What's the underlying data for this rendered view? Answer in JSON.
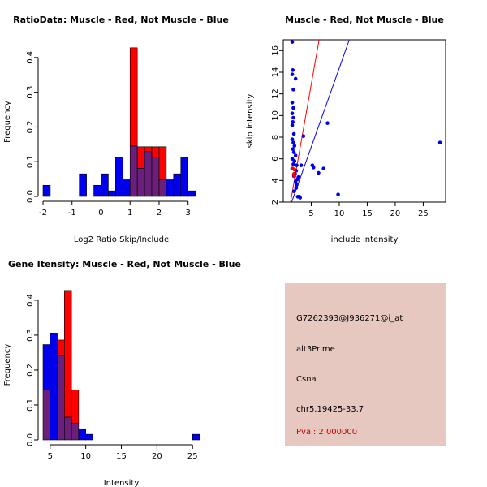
{
  "colors": {
    "red": "#ff0000",
    "blue": "#0000ee",
    "overlap": "#6a1f7a",
    "info_bg": "#e6c8c0",
    "pval": "#c00000"
  },
  "chart_data": [
    {
      "id": "ratio",
      "type": "bar",
      "title": "RatioData: Muscle - Red, Not Muscle - Blue",
      "xlabel": "Log2 Ratio Skip/Include",
      "ylabel": "Frequency",
      "xlim": [
        -2,
        3.4
      ],
      "ylim": [
        0,
        0.43
      ],
      "xticks": [
        -2,
        -1,
        0,
        1,
        2,
        3
      ],
      "yticks": [
        0.0,
        0.1,
        0.2,
        0.3,
        0.4
      ],
      "ytick_labels": [
        "0.0",
        "0.1",
        "0.2",
        "0.3",
        "0.4"
      ],
      "bin_edges": [
        -2.0,
        -1.75,
        -1.5,
        -1.25,
        -1.0,
        -0.75,
        -0.5,
        -0.25,
        0.0,
        0.25,
        0.5,
        0.75,
        1.0,
        1.25,
        1.5,
        1.75,
        2.0,
        2.25,
        2.5,
        2.75,
        3.0,
        3.25
      ],
      "series": [
        {
          "name": "Muscle",
          "color": "red",
          "values": [
            0,
            0,
            0,
            0,
            0,
            0,
            0,
            0,
            0,
            0,
            0,
            0,
            0.428,
            0.143,
            0.143,
            0.143,
            0.143,
            0,
            0,
            0,
            0
          ]
        },
        {
          "name": "Not Muscle",
          "color": "blue",
          "values": [
            0.032,
            0,
            0,
            0,
            0,
            0.065,
            0,
            0.032,
            0.065,
            0.016,
            0.113,
            0.048,
            0.145,
            0.081,
            0.129,
            0.113,
            0.048,
            0.048,
            0.065,
            0.113,
            0.016
          ]
        }
      ]
    },
    {
      "id": "scatter",
      "type": "scatter",
      "title": "Muscle - Red, Not Muscle - Blue",
      "xlabel": "include intensity",
      "ylabel": "skip intensity",
      "xlim": [
        0,
        29
      ],
      "ylim": [
        2,
        17
      ],
      "xticks": [
        5,
        10,
        15,
        20,
        25
      ],
      "yticks": [
        2,
        4,
        6,
        8,
        10,
        12,
        14,
        16
      ],
      "lines": [
        {
          "name": "red-fit",
          "color": "red",
          "x": [
            1.3,
            6.4
          ],
          "y": [
            2,
            17
          ]
        },
        {
          "name": "blue-fit",
          "color": "blue",
          "x": [
            1.5,
            11.8
          ],
          "y": [
            2,
            17
          ]
        }
      ],
      "series": [
        {
          "name": "Not Muscle",
          "color": "blue",
          "points": [
            [
              1.6,
              16.8
            ],
            [
              1.7,
              14.2
            ],
            [
              1.6,
              13.8
            ],
            [
              2.2,
              13.4
            ],
            [
              1.8,
              12.4
            ],
            [
              1.6,
              11.2
            ],
            [
              1.8,
              10.7
            ],
            [
              1.6,
              10.2
            ],
            [
              1.8,
              9.8
            ],
            [
              1.7,
              9.4
            ],
            [
              1.6,
              9.1
            ],
            [
              1.9,
              8.3
            ],
            [
              1.6,
              7.8
            ],
            [
              1.8,
              7.5
            ],
            [
              2.0,
              7.2
            ],
            [
              1.7,
              6.9
            ],
            [
              1.9,
              6.6
            ],
            [
              2.2,
              6.3
            ],
            [
              1.6,
              6.0
            ],
            [
              2.0,
              5.8
            ],
            [
              1.8,
              5.5
            ],
            [
              2.4,
              5.4
            ],
            [
              1.6,
              5.1
            ],
            [
              2.3,
              4.9
            ],
            [
              2.1,
              4.6
            ],
            [
              1.9,
              4.4
            ],
            [
              2.5,
              4.1
            ],
            [
              2.7,
              4.3
            ],
            [
              2.2,
              3.9
            ],
            [
              2.4,
              3.6
            ],
            [
              2.3,
              3.3
            ],
            [
              1.9,
              3.0
            ],
            [
              2.6,
              2.5
            ],
            [
              2.9,
              2.5
            ],
            [
              3.0,
              2.4
            ],
            [
              3.2,
              5.4
            ],
            [
              3.6,
              8.1
            ],
            [
              5.2,
              5.4
            ],
            [
              5.4,
              5.2
            ],
            [
              6.3,
              4.7
            ],
            [
              7.2,
              5.1
            ],
            [
              7.9,
              9.3
            ],
            [
              9.8,
              2.7
            ],
            [
              28.0,
              7.5
            ]
          ]
        },
        {
          "name": "Muscle",
          "color": "red",
          "points": [
            [
              1.7,
              5.1
            ],
            [
              2.0,
              5.0
            ],
            [
              1.9,
              4.6
            ],
            [
              2.0,
              4.4
            ]
          ]
        }
      ]
    },
    {
      "id": "intensity",
      "type": "bar",
      "title": "Gene Itensity: Muscle - Red, Not Muscle - Blue",
      "xlabel": "Intensity",
      "ylabel": "Frequency",
      "xlim": [
        4,
        26
      ],
      "ylim": [
        0,
        0.43
      ],
      "xticks": [
        5,
        10,
        15,
        20,
        25
      ],
      "yticks": [
        0.0,
        0.1,
        0.2,
        0.3,
        0.4
      ],
      "ytick_labels": [
        "0.0",
        "0.1",
        "0.2",
        "0.3",
        "0.4"
      ],
      "bin_edges": [
        4,
        5,
        6,
        7,
        8,
        9,
        10,
        11,
        12,
        13,
        14,
        15,
        16,
        17,
        18,
        19,
        20,
        21,
        22,
        23,
        24,
        25,
        26
      ],
      "series": [
        {
          "name": "Muscle",
          "color": "red",
          "values": [
            0.143,
            0,
            0.286,
            0.428,
            0.143,
            0,
            0,
            0,
            0,
            0,
            0,
            0,
            0,
            0,
            0,
            0,
            0,
            0,
            0,
            0,
            0,
            0
          ]
        },
        {
          "name": "Not Muscle",
          "color": "blue",
          "values": [
            0.273,
            0.306,
            0.242,
            0.065,
            0.048,
            0.032,
            0.016,
            0,
            0,
            0,
            0,
            0,
            0,
            0,
            0,
            0,
            0,
            0,
            0,
            0,
            0,
            0.016
          ]
        }
      ]
    }
  ],
  "info": {
    "probe_id": "G7262393@J936271@i_at",
    "event_type": "alt3Prime",
    "gene": "Csna",
    "location": "chr5.19425-33.7",
    "pval": "Pval: 2.000000"
  }
}
